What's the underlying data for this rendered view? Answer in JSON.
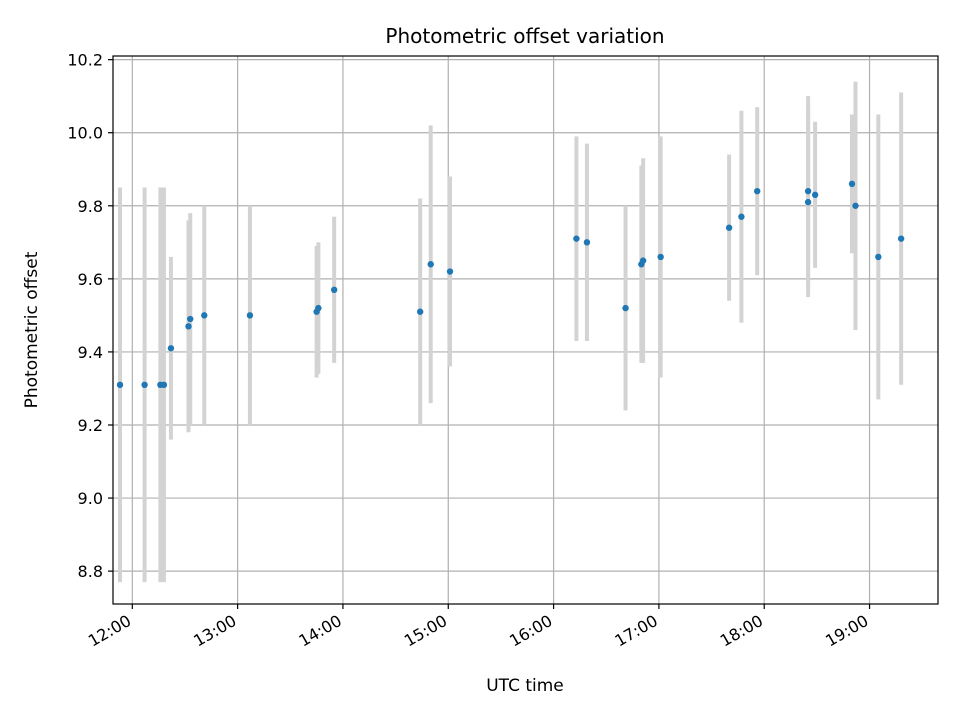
{
  "chart_data": {
    "type": "scatter",
    "title": "Photometric offset variation",
    "xlabel": "UTC time",
    "ylabel": "Photometric offset",
    "xlim": [
      "11:49",
      "19:39"
    ],
    "ylim": [
      8.71,
      10.21
    ],
    "x_ticks": [
      "12:00",
      "13:00",
      "14:00",
      "15:00",
      "16:00",
      "17:00",
      "18:00",
      "19:00"
    ],
    "y_ticks": [
      "8.8",
      "9.0",
      "9.2",
      "9.4",
      "9.6",
      "9.8",
      "10.0",
      "10.2"
    ],
    "grid": true,
    "point_color": "#1f77b4",
    "errorbar_color": "#d3d3d3",
    "grid_color": "#b0b0b0",
    "points": [
      {
        "x": "11:53",
        "y": 9.31,
        "err": 0.54
      },
      {
        "x": "12:07",
        "y": 9.31,
        "err": 0.54
      },
      {
        "x": "12:16",
        "y": 9.31,
        "err": 0.54
      },
      {
        "x": "12:18",
        "y": 9.31,
        "err": 0.54
      },
      {
        "x": "12:22",
        "y": 9.41,
        "err": 0.25
      },
      {
        "x": "12:32",
        "y": 9.47,
        "err": 0.29
      },
      {
        "x": "12:33",
        "y": 9.49,
        "err": 0.29
      },
      {
        "x": "12:41",
        "y": 9.5,
        "err": 0.3
      },
      {
        "x": "13:07",
        "y": 9.5,
        "err": 0.3
      },
      {
        "x": "13:45",
        "y": 9.51,
        "err": 0.18
      },
      {
        "x": "13:46",
        "y": 9.52,
        "err": 0.18
      },
      {
        "x": "13:55",
        "y": 9.57,
        "err": 0.2
      },
      {
        "x": "14:44",
        "y": 9.51,
        "err": 0.31
      },
      {
        "x": "14:50",
        "y": 9.64,
        "err": 0.38
      },
      {
        "x": "15:01",
        "y": 9.62,
        "err": 0.26
      },
      {
        "x": "16:13",
        "y": 9.71,
        "err": 0.28
      },
      {
        "x": "16:19",
        "y": 9.7,
        "err": 0.27
      },
      {
        "x": "16:41",
        "y": 9.52,
        "err": 0.28
      },
      {
        "x": "16:50",
        "y": 9.64,
        "err": 0.27
      },
      {
        "x": "16:51",
        "y": 9.65,
        "err": 0.28
      },
      {
        "x": "17:01",
        "y": 9.66,
        "err": 0.33
      },
      {
        "x": "17:40",
        "y": 9.74,
        "err": 0.2
      },
      {
        "x": "17:47",
        "y": 9.77,
        "err": 0.29
      },
      {
        "x": "17:56",
        "y": 9.84,
        "err": 0.23
      },
      {
        "x": "18:25",
        "y": 9.84,
        "err": 0.26
      },
      {
        "x": "18:25",
        "y": 9.81,
        "err": 0.26
      },
      {
        "x": "18:29",
        "y": 9.83,
        "err": 0.2
      },
      {
        "x": "18:50",
        "y": 9.86,
        "err": 0.19
      },
      {
        "x": "18:52",
        "y": 9.8,
        "err": 0.34
      },
      {
        "x": "19:05",
        "y": 9.66,
        "err": 0.39
      },
      {
        "x": "19:18",
        "y": 9.71,
        "err": 0.4
      }
    ]
  }
}
